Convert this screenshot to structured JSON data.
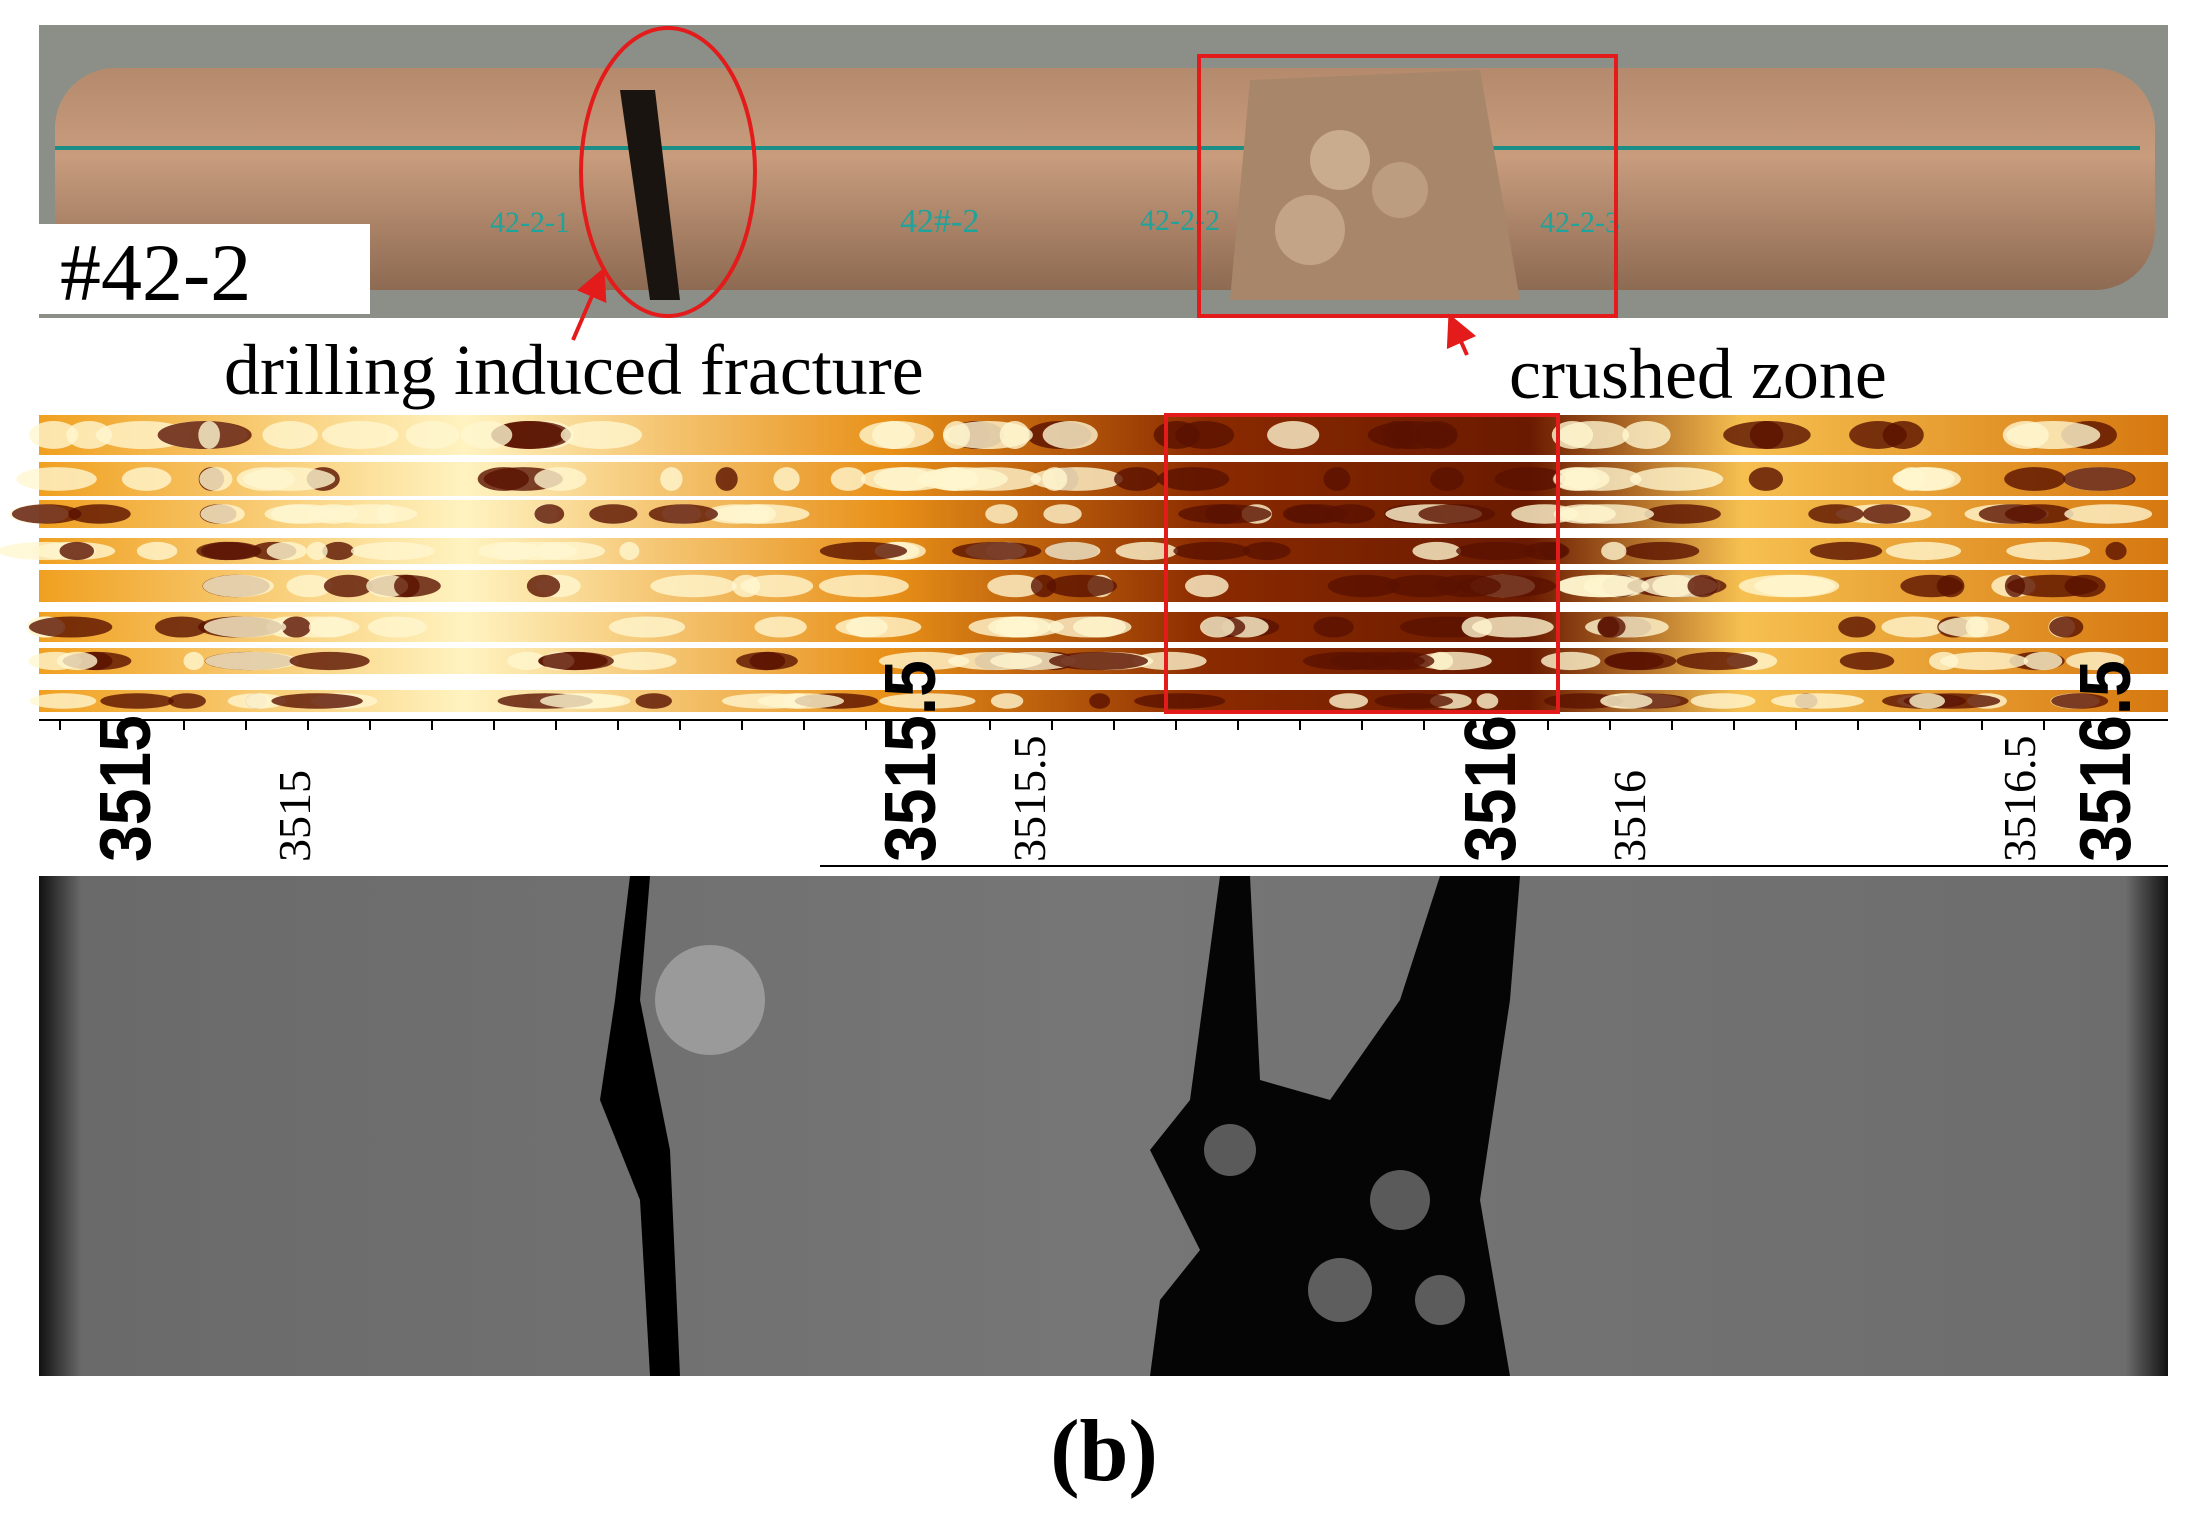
{
  "figure": {
    "sample_label": "#42-2",
    "core_marks": [
      "42-2-1",
      "42#-2",
      "42-2-2",
      "42-2-3"
    ],
    "annotations": {
      "fracture": "drilling induced fracture",
      "crushed": "crushed zone"
    },
    "depth_bold": [
      "3515",
      "3515.5",
      "3516",
      "3516.5"
    ],
    "depth_plain": [
      "3515",
      "3515.5",
      "3516",
      "3516.5"
    ],
    "panel_label": "(b)"
  }
}
